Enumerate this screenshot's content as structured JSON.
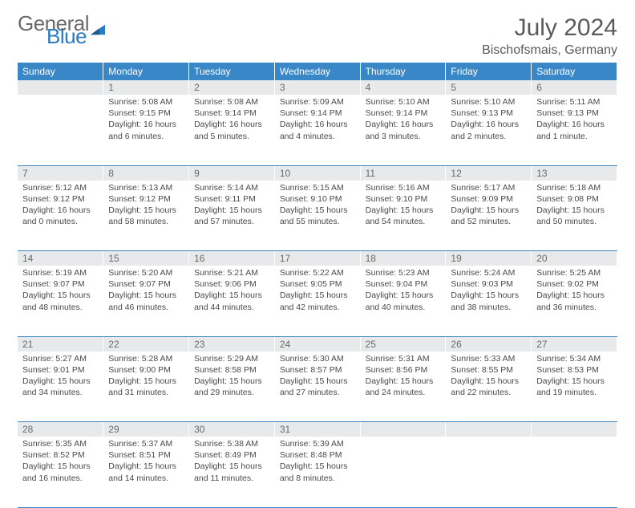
{
  "brand": {
    "word1": "General",
    "word2": "Blue",
    "tri_color": "#2b7bbf"
  },
  "title": "July 2024",
  "location": "Bischofsmais, Germany",
  "header_bg": "#3a87c7",
  "header_fg": "#ffffff",
  "daynum_bg": "#e8e9ea",
  "rule_color": "#3a87c7",
  "text_color": "#4a4a4a",
  "day_headers": [
    "Sunday",
    "Monday",
    "Tuesday",
    "Wednesday",
    "Thursday",
    "Friday",
    "Saturday"
  ],
  "weeks": [
    {
      "nums": [
        "",
        "1",
        "2",
        "3",
        "4",
        "5",
        "6"
      ],
      "cells": [
        null,
        {
          "sunrise": "5:08 AM",
          "sunset": "9:15 PM",
          "daylight": "16 hours and 6 minutes."
        },
        {
          "sunrise": "5:08 AM",
          "sunset": "9:14 PM",
          "daylight": "16 hours and 5 minutes."
        },
        {
          "sunrise": "5:09 AM",
          "sunset": "9:14 PM",
          "daylight": "16 hours and 4 minutes."
        },
        {
          "sunrise": "5:10 AM",
          "sunset": "9:14 PM",
          "daylight": "16 hours and 3 minutes."
        },
        {
          "sunrise": "5:10 AM",
          "sunset": "9:13 PM",
          "daylight": "16 hours and 2 minutes."
        },
        {
          "sunrise": "5:11 AM",
          "sunset": "9:13 PM",
          "daylight": "16 hours and 1 minute."
        }
      ]
    },
    {
      "nums": [
        "7",
        "8",
        "9",
        "10",
        "11",
        "12",
        "13"
      ],
      "cells": [
        {
          "sunrise": "5:12 AM",
          "sunset": "9:12 PM",
          "daylight": "16 hours and 0 minutes."
        },
        {
          "sunrise": "5:13 AM",
          "sunset": "9:12 PM",
          "daylight": "15 hours and 58 minutes."
        },
        {
          "sunrise": "5:14 AM",
          "sunset": "9:11 PM",
          "daylight": "15 hours and 57 minutes."
        },
        {
          "sunrise": "5:15 AM",
          "sunset": "9:10 PM",
          "daylight": "15 hours and 55 minutes."
        },
        {
          "sunrise": "5:16 AM",
          "sunset": "9:10 PM",
          "daylight": "15 hours and 54 minutes."
        },
        {
          "sunrise": "5:17 AM",
          "sunset": "9:09 PM",
          "daylight": "15 hours and 52 minutes."
        },
        {
          "sunrise": "5:18 AM",
          "sunset": "9:08 PM",
          "daylight": "15 hours and 50 minutes."
        }
      ]
    },
    {
      "nums": [
        "14",
        "15",
        "16",
        "17",
        "18",
        "19",
        "20"
      ],
      "cells": [
        {
          "sunrise": "5:19 AM",
          "sunset": "9:07 PM",
          "daylight": "15 hours and 48 minutes."
        },
        {
          "sunrise": "5:20 AM",
          "sunset": "9:07 PM",
          "daylight": "15 hours and 46 minutes."
        },
        {
          "sunrise": "5:21 AM",
          "sunset": "9:06 PM",
          "daylight": "15 hours and 44 minutes."
        },
        {
          "sunrise": "5:22 AM",
          "sunset": "9:05 PM",
          "daylight": "15 hours and 42 minutes."
        },
        {
          "sunrise": "5:23 AM",
          "sunset": "9:04 PM",
          "daylight": "15 hours and 40 minutes."
        },
        {
          "sunrise": "5:24 AM",
          "sunset": "9:03 PM",
          "daylight": "15 hours and 38 minutes."
        },
        {
          "sunrise": "5:25 AM",
          "sunset": "9:02 PM",
          "daylight": "15 hours and 36 minutes."
        }
      ]
    },
    {
      "nums": [
        "21",
        "22",
        "23",
        "24",
        "25",
        "26",
        "27"
      ],
      "cells": [
        {
          "sunrise": "5:27 AM",
          "sunset": "9:01 PM",
          "daylight": "15 hours and 34 minutes."
        },
        {
          "sunrise": "5:28 AM",
          "sunset": "9:00 PM",
          "daylight": "15 hours and 31 minutes."
        },
        {
          "sunrise": "5:29 AM",
          "sunset": "8:58 PM",
          "daylight": "15 hours and 29 minutes."
        },
        {
          "sunrise": "5:30 AM",
          "sunset": "8:57 PM",
          "daylight": "15 hours and 27 minutes."
        },
        {
          "sunrise": "5:31 AM",
          "sunset": "8:56 PM",
          "daylight": "15 hours and 24 minutes."
        },
        {
          "sunrise": "5:33 AM",
          "sunset": "8:55 PM",
          "daylight": "15 hours and 22 minutes."
        },
        {
          "sunrise": "5:34 AM",
          "sunset": "8:53 PM",
          "daylight": "15 hours and 19 minutes."
        }
      ]
    },
    {
      "nums": [
        "28",
        "29",
        "30",
        "31",
        "",
        "",
        ""
      ],
      "cells": [
        {
          "sunrise": "5:35 AM",
          "sunset": "8:52 PM",
          "daylight": "15 hours and 16 minutes."
        },
        {
          "sunrise": "5:37 AM",
          "sunset": "8:51 PM",
          "daylight": "15 hours and 14 minutes."
        },
        {
          "sunrise": "5:38 AM",
          "sunset": "8:49 PM",
          "daylight": "15 hours and 11 minutes."
        },
        {
          "sunrise": "5:39 AM",
          "sunset": "8:48 PM",
          "daylight": "15 hours and 8 minutes."
        },
        null,
        null,
        null
      ]
    }
  ],
  "labels": {
    "sunrise": "Sunrise: ",
    "sunset": "Sunset: ",
    "daylight": "Daylight: "
  }
}
